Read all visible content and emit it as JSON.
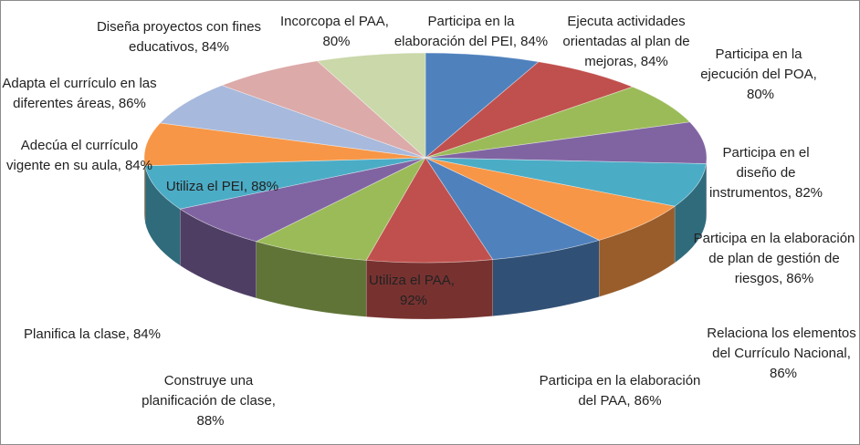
{
  "chart_data": {
    "type": "pie3d",
    "categories": [
      "Participa en la elaboración del PEI,",
      "Ejecuta actividades orientadas al plan de mejoras,",
      "Participa en la ejecución del POA,",
      "Participa en el diseño de instrumentos,",
      "Participa en la elaboración de plan de gestión de riesgos,",
      "Relaciona los elementos del Currículo Nacional,",
      "Participa en la elaboración del PAA,",
      "Utiliza el PAA,",
      "Construye una planificación de clase,",
      "Planifica la clase,",
      "Utiliza el PEI,",
      "Adecúa el currículo vigente en su aula,",
      "Adapta el currículo en las diferentes áreas,",
      "Diseña proyectos con fines educativos,",
      "Incorcopa el PAA,"
    ],
    "values": [
      84,
      84,
      80,
      82,
      86,
      86,
      86,
      92,
      88,
      84,
      88,
      84,
      86,
      84,
      80
    ],
    "value_labels": [
      "84%",
      "84%",
      "80%",
      "82%",
      "86%",
      "86%",
      "86%",
      "92%",
      "88%",
      "84%",
      "88%",
      "84%",
      "86%",
      "84%",
      "80%"
    ],
    "colors": [
      "#4f81bd",
      "#c0504d",
      "#9bbb59",
      "#8064a2",
      "#4bacc6",
      "#f79646",
      "#4f81bd",
      "#c0504d",
      "#9bbb59",
      "#8064a2",
      "#4bacc6",
      "#f79646",
      "#a7b9dc",
      "#dcaaa9",
      "#cad8aa"
    ]
  }
}
